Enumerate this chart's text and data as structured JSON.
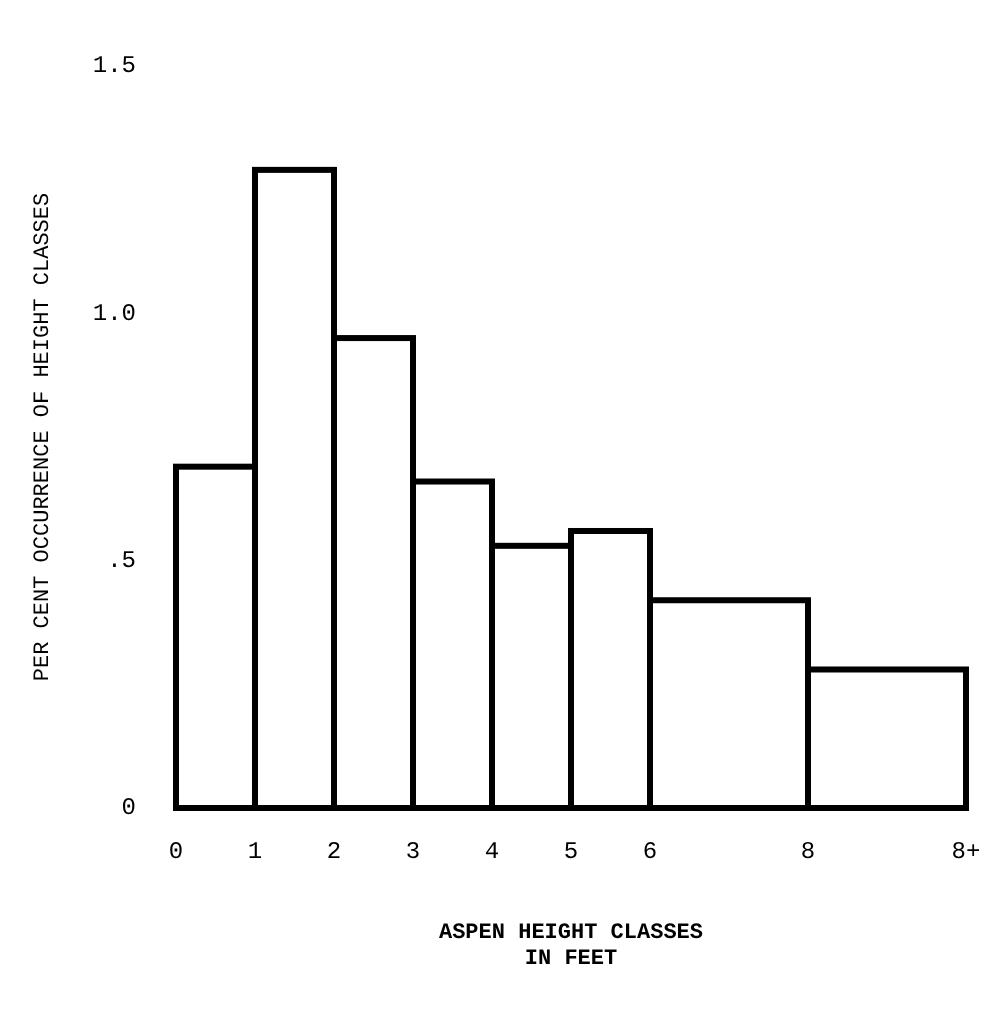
{
  "chart_data": {
    "type": "histogram",
    "xlabel": "ASPEN HEIGHT CLASSES\nIN FEET",
    "ylabel": "PER CENT OCCURRENCE OF HEIGHT CLASSES",
    "bins": [
      0,
      1,
      2,
      3,
      4,
      5,
      6,
      8,
      10
    ],
    "values": [
      0.69,
      1.29,
      0.95,
      0.66,
      0.53,
      0.56,
      0.42,
      0.28
    ],
    "color": "#ffffff",
    "xlim": [
      0,
      10
    ],
    "xticks": [
      0,
      1,
      2,
      3,
      4,
      5,
      6,
      8,
      {
        "value": 10,
        "label": "8+"
      }
    ],
    "ylim": [
      0,
      1.5
    ],
    "yticks": [
      {
        "value": 0,
        "label": "0"
      },
      {
        "value": 0.5,
        "label": ".5"
      },
      {
        "value": 1,
        "label": "1.0"
      },
      {
        "value": 1.5,
        "label": "1.5"
      }
    ],
    "grid": false
  }
}
